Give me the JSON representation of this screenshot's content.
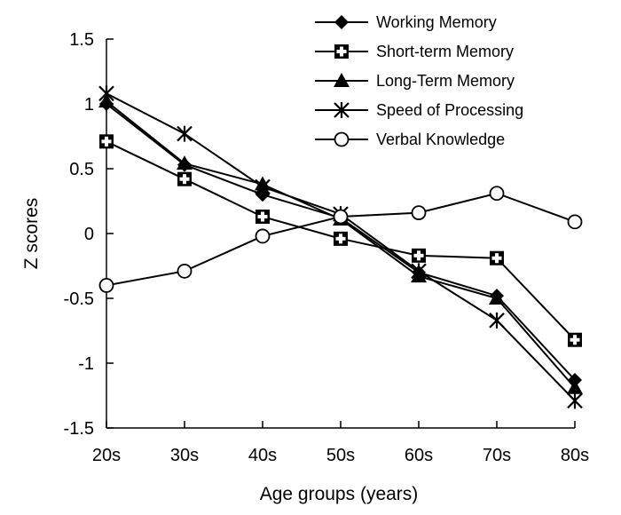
{
  "chart_data": {
    "type": "line",
    "title": "",
    "xlabel": "Age groups (years)",
    "ylabel": "Z scores",
    "categories": [
      "20s",
      "30s",
      "40s",
      "50s",
      "60s",
      "70s",
      "80s"
    ],
    "ylim": [
      -1.5,
      1.5
    ],
    "yticks": [
      -1.5,
      -1,
      -0.5,
      0,
      0.5,
      1,
      1.5
    ],
    "ytick_labels": [
      "-1.5",
      "-1",
      "-0.5",
      "0",
      "0.5",
      "1",
      "1.5"
    ],
    "grid": false,
    "legend_position": "top-right",
    "series": [
      {
        "name": "Working Memory",
        "marker": "diamond",
        "values": [
          1.0,
          0.53,
          0.3,
          0.12,
          -0.3,
          -0.48,
          -1.13
        ]
      },
      {
        "name": "Short-term Memory",
        "marker": "square-cross",
        "values": [
          0.71,
          0.42,
          0.13,
          -0.04,
          -0.17,
          -0.19,
          -0.82
        ]
      },
      {
        "name": "Long-Term Memory",
        "marker": "triangle",
        "values": [
          1.02,
          0.54,
          0.38,
          0.11,
          -0.33,
          -0.5,
          -1.19
        ]
      },
      {
        "name": "Speed of Processing",
        "marker": "star",
        "values": [
          1.08,
          0.77,
          0.36,
          0.15,
          -0.29,
          -0.67,
          -1.29
        ]
      },
      {
        "name": "Verbal Knowledge",
        "marker": "circle",
        "values": [
          -0.4,
          -0.29,
          -0.02,
          0.13,
          0.16,
          0.31,
          0.09
        ]
      }
    ]
  }
}
